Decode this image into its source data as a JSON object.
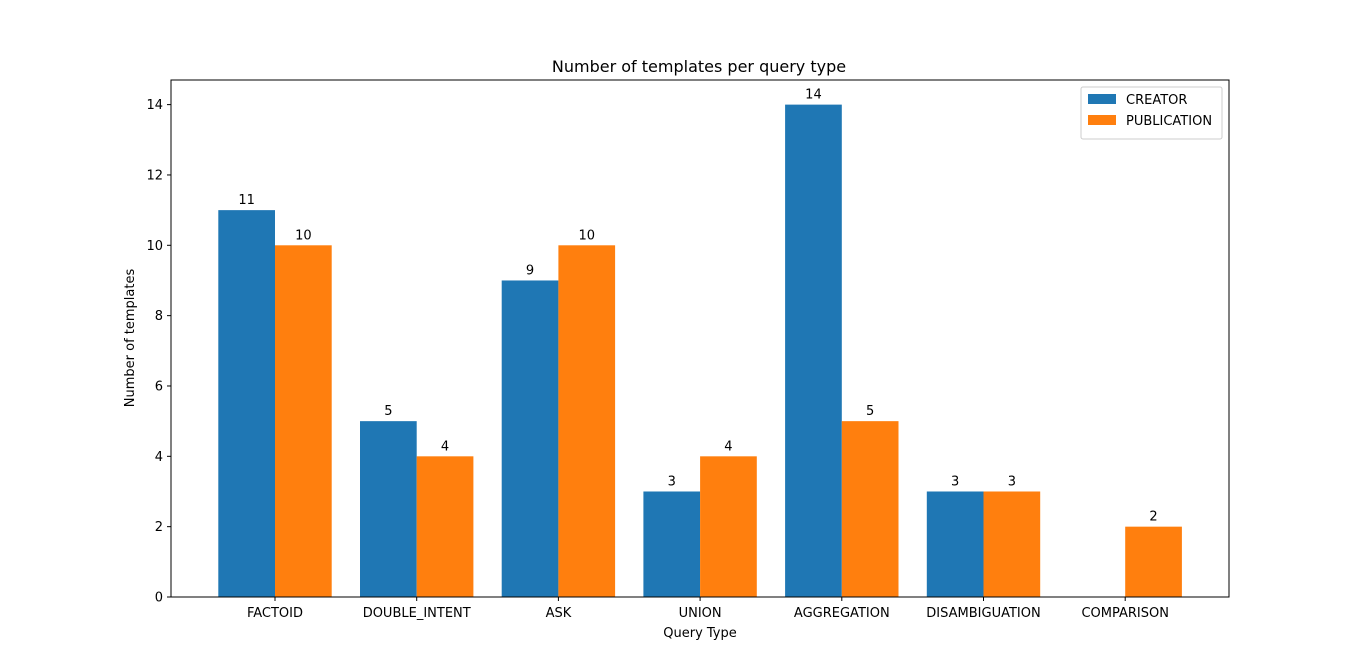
{
  "chart_data": {
    "type": "bar",
    "title": "Number of templates per query type",
    "xlabel": "Query Type",
    "ylabel": "Number of templates",
    "categories": [
      "FACTOID",
      "DOUBLE_INTENT",
      "ASK",
      "UNION",
      "AGGREGATION",
      "DISAMBIGUATION",
      "COMPARISON"
    ],
    "series": [
      {
        "name": "CREATOR",
        "color": "#1f77b4",
        "values": [
          11,
          5,
          9,
          3,
          14,
          3,
          null
        ]
      },
      {
        "name": "PUBLICATION",
        "color": "#ff7f0e",
        "values": [
          10,
          4,
          10,
          4,
          5,
          3,
          2
        ]
      }
    ],
    "ylim": [
      0,
      14.7
    ],
    "yticks": [
      0,
      2,
      4,
      6,
      8,
      10,
      12,
      14
    ],
    "grid": false,
    "legend_position": "top-right"
  }
}
